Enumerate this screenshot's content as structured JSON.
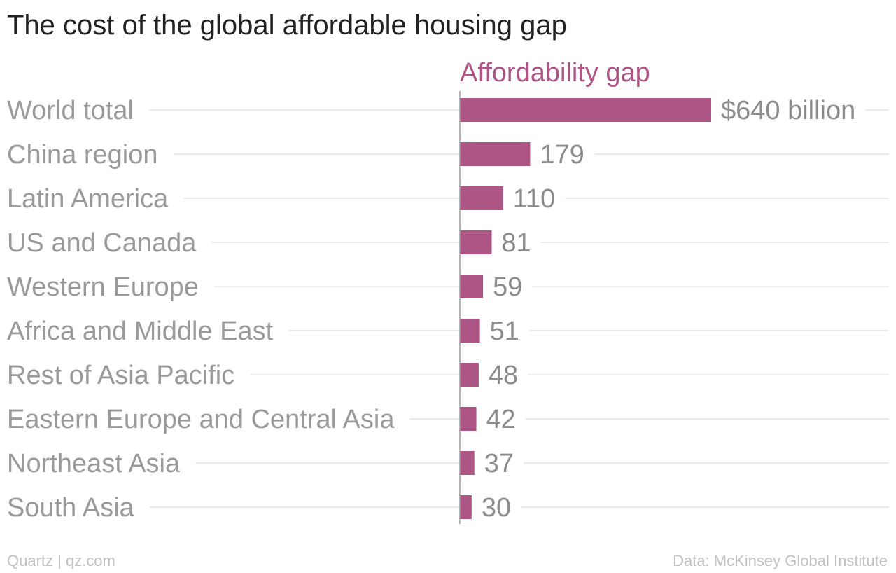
{
  "title": "The cost of the global affordable housing gap",
  "footer": {
    "credit": "Quartz | qz.com",
    "source": "Data: McKinsey Global Institute"
  },
  "colors": {
    "bar": "#ad5585",
    "series_label": "#ad5585",
    "category_label": "#9a9a9a",
    "value_label": "#8c8c8c",
    "gridline": "#ebebeb",
    "axis": "#9a9a9a"
  },
  "chart_data": {
    "type": "bar",
    "orientation": "horizontal",
    "categories": [
      "World total",
      "China region",
      "Latin America",
      "US and Canada",
      "Western Europe",
      "Africa and Middle East",
      "Rest of Asia Pacific",
      "Eastern Europe and Central Asia",
      "Northeast Asia",
      "South Asia"
    ],
    "series": [
      {
        "name": "Affordability gap",
        "values": [
          640,
          179,
          110,
          81,
          59,
          51,
          48,
          42,
          37,
          30
        ],
        "value_labels": [
          "$640 billion",
          "179",
          "110",
          "81",
          "59",
          "51",
          "48",
          "42",
          "37",
          "30"
        ]
      }
    ],
    "xlim": [
      0,
      640
    ],
    "grid": true,
    "legend": "none"
  }
}
